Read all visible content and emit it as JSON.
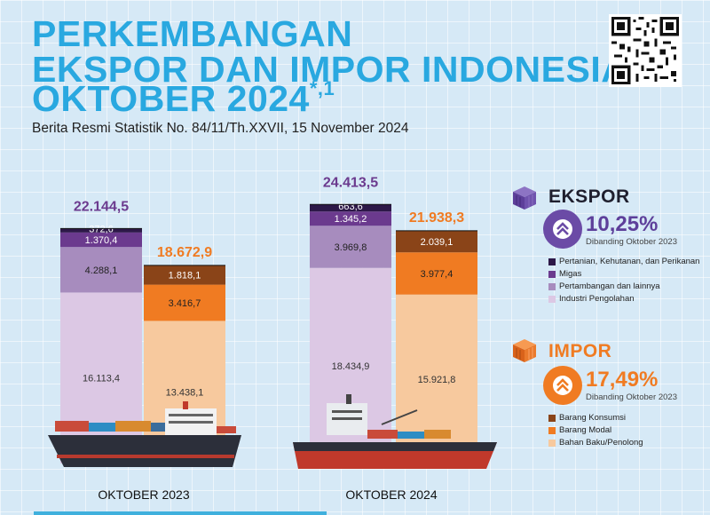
{
  "title": {
    "line1": "PERKEMBANGAN",
    "line2": "EKSPOR DAN IMPOR INDONESIA",
    "line3": "OKTOBER 2024",
    "line3_sup": "*,1"
  },
  "subtitle": "Berita Resmi Statistik No. 84/11/Th.XXVII, 15 November 2024",
  "colors": {
    "title": "#29a8e0",
    "ekspor_total": "#6b3a8e",
    "impor_total": "#f07b22"
  },
  "legend": {
    "ekspor": {
      "title": "EKSPOR",
      "icon": "container-cube-icon",
      "pct": "10,25%",
      "badge_icon": "double-chevron-up-icon",
      "note": "Dibanding Oktober 2023",
      "items": [
        {
          "label": "Pertanian, Kehutanan, dan Perikanan",
          "color": "#2d1848"
        },
        {
          "label": "Migas",
          "color": "#6b3a8e"
        },
        {
          "label": "Pertambangan dan lainnya",
          "color": "#a78cbe"
        },
        {
          "label": "Industri Pengolahan",
          "color": "#dcc8e4"
        }
      ]
    },
    "impor": {
      "title": "IMPOR",
      "icon": "container-cube-icon",
      "pct": "17,49%",
      "badge_icon": "double-chevron-up-icon",
      "note": "Dibanding Oktober 2023",
      "items": [
        {
          "label": "Barang Konsumsi",
          "color": "#8a4418"
        },
        {
          "label": "Barang Modal",
          "color": "#f07b22"
        },
        {
          "label": "Bahan Baku/Penolong",
          "color": "#f7c99e"
        }
      ]
    }
  },
  "chart_data": {
    "type": "bar",
    "stacked": true,
    "categories": [
      "OKTOBER 2023",
      "OKTOBER 2024"
    ],
    "groups": [
      {
        "category": "OKTOBER 2023",
        "ekspor": {
          "total_label": "22.144,5",
          "segments": [
            {
              "name": "Industri Pengolahan",
              "value": 16113.4,
              "label": "16.113,4"
            },
            {
              "name": "Pertambangan dan lainnya",
              "value": 4288.1,
              "label": "4.288,1"
            },
            {
              "name": "Migas",
              "value": 1370.4,
              "label": "1.370,4"
            },
            {
              "name": "Pertanian, Kehutanan, dan Perikanan",
              "value": 372.6,
              "label": "372,6"
            }
          ]
        },
        "impor": {
          "total_label": "18.672,9",
          "segments": [
            {
              "name": "Bahan Baku/Penolong",
              "value": 13438.1,
              "label": "13.438,1"
            },
            {
              "name": "Barang Modal",
              "value": 3416.7,
              "label": "3.416,7"
            },
            {
              "name": "Barang Konsumsi",
              "value": 1818.1,
              "label": "1.818,1"
            }
          ]
        }
      },
      {
        "category": "OKTOBER 2024",
        "ekspor": {
          "total_label": "24.413,5",
          "segments": [
            {
              "name": "Industri Pengolahan",
              "value": 18434.9,
              "label": "18.434,9"
            },
            {
              "name": "Pertambangan dan lainnya",
              "value": 3969.8,
              "label": "3.969,8"
            },
            {
              "name": "Migas",
              "value": 1345.2,
              "label": "1.345,2"
            },
            {
              "name": "Pertanian, Kehutanan, dan Perikanan",
              "value": 663.6,
              "label": "663,6"
            }
          ]
        },
        "impor": {
          "total_label": "21.938,3",
          "segments": [
            {
              "name": "Bahan Baku/Penolong",
              "value": 15921.8,
              "label": "15.921,8"
            },
            {
              "name": "Barang Modal",
              "value": 3977.4,
              "label": "3.977,4"
            },
            {
              "name": "Barang Konsumsi",
              "value": 2039.1,
              "label": "2.039,1"
            }
          ]
        }
      }
    ]
  }
}
